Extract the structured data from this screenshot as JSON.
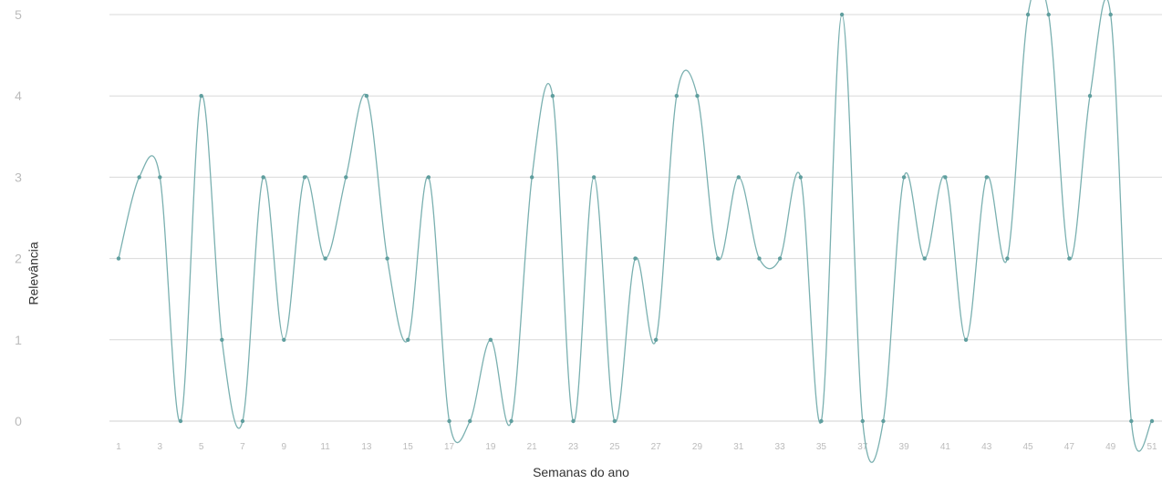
{
  "chart_data": {
    "type": "line",
    "title": "",
    "xlabel": "Semanas do ano",
    "ylabel": "Relevância",
    "x": [
      1,
      2,
      3,
      4,
      5,
      6,
      7,
      8,
      9,
      10,
      11,
      12,
      13,
      14,
      15,
      16,
      17,
      18,
      19,
      20,
      21,
      22,
      23,
      24,
      25,
      26,
      27,
      28,
      29,
      30,
      31,
      32,
      33,
      34,
      35,
      36,
      37,
      38,
      39,
      40,
      41,
      42,
      43,
      44,
      45,
      46,
      47,
      48,
      49,
      50,
      51
    ],
    "series": [
      {
        "values": [
          2,
          3,
          3,
          0,
          4,
          1,
          0,
          3,
          1,
          3,
          2,
          3,
          4,
          2,
          1,
          3,
          0,
          0,
          1,
          0,
          3,
          4,
          0,
          3,
          0,
          2,
          1,
          4,
          4,
          2,
          3,
          2,
          2,
          3,
          0,
          5,
          0,
          0,
          3,
          2,
          3,
          1,
          3,
          2,
          5,
          5,
          2,
          4,
          5,
          0,
          0
        ],
        "color": "#7ab0b0"
      }
    ],
    "ylim": [
      0,
      5
    ],
    "xlim": [
      1,
      51
    ],
    "yticks": [
      "0",
      "1",
      "2",
      "3",
      "4",
      "5"
    ],
    "xticks": [
      "1",
      "3",
      "5",
      "7",
      "9",
      "11",
      "13",
      "15",
      "17",
      "19",
      "21",
      "23",
      "25",
      "27",
      "29",
      "31",
      "33",
      "35",
      "37",
      "39",
      "41",
      "43",
      "45",
      "47",
      "49",
      "51"
    ],
    "grid": true,
    "colors": {
      "line": "#7ab0b0",
      "marker": "#5f9e9e",
      "grid": "#d9d9d9",
      "tick": "#bbbbbb"
    }
  }
}
